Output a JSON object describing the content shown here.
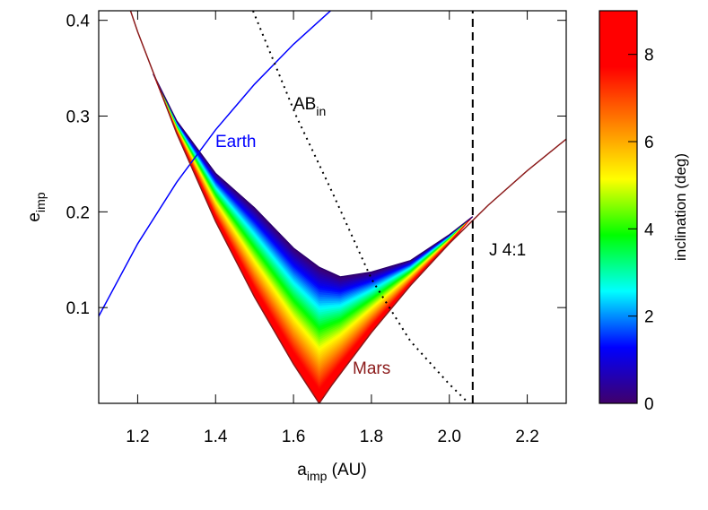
{
  "chart_data": {
    "type": "line",
    "xlabel": {
      "main": "a",
      "sub": "imp",
      "rest": " (AU)"
    },
    "ylabel": {
      "main": "e",
      "sub": "imp"
    },
    "xlim": [
      1.1,
      2.3
    ],
    "xticks": [
      1.2,
      1.4,
      1.6,
      1.8,
      {
        "value": 2.0,
        "label": "2.0"
      },
      2.2
    ],
    "ylim": [
      0,
      0.41
    ],
    "yticks": [
      0.1,
      0.2,
      0.3,
      0.4
    ],
    "series": [
      {
        "name": "Earth",
        "color": "#0000ff",
        "style": "solid",
        "x": [
          1.1,
          1.2,
          1.3,
          1.4,
          1.5,
          1.6,
          1.7
        ],
        "values": [
          0.0909,
          0.1667,
          0.2308,
          0.2857,
          0.3333,
          0.375,
          0.4118
        ]
      },
      {
        "name": "Mars",
        "color": "#8b1a1a",
        "style": "solid",
        "x": [
          1.18,
          1.2,
          1.3,
          1.4,
          1.5,
          1.6,
          1.666,
          1.7,
          1.8,
          1.9,
          2.0,
          2.1,
          2.2,
          2.3
        ],
        "values": [
          0.412,
          0.388,
          0.282,
          0.19,
          0.111,
          0.041,
          0,
          0.02,
          0.074,
          0.123,
          0.167,
          0.207,
          0.243,
          0.276
        ]
      },
      {
        "name": "AB",
        "color": "#000000",
        "style": "dotted",
        "x": [
          1.496,
          1.607,
          1.7,
          1.8,
          1.9,
          2.0,
          2.05
        ],
        "values": [
          0.41,
          0.3,
          0.22,
          0.13,
          0.065,
          0.02,
          0
        ]
      },
      {
        "name": "J 4:1",
        "color": "#000000",
        "style": "dashed",
        "x": [
          2.06,
          2.06
        ],
        "values": [
          0,
          0.41
        ]
      }
    ],
    "annotations": {
      "ab_sub": "in"
    },
    "region": {
      "x": [
        1.24,
        1.3,
        1.4,
        1.5,
        1.6,
        1.666,
        1.72,
        1.8,
        1.9,
        2.0,
        2.06
      ],
      "upper": [
        0.344,
        0.295,
        0.24,
        0.204,
        0.162,
        0.142,
        0.132,
        0.137,
        0.149,
        0.176,
        0.195
      ],
      "lower": [
        0.344,
        0.282,
        0.19,
        0.111,
        0.041,
        0,
        0.031,
        0.074,
        0.123,
        0.167,
        0.195
      ]
    },
    "colorbar": {
      "label": "inclination (deg)",
      "lim": [
        0,
        9
      ],
      "ticks": [
        0,
        2,
        4,
        6,
        8
      ],
      "colormap": [
        "#40006a",
        "#0000ff",
        "#00ffff",
        "#00ff00",
        "#ffff00",
        "#ff8000",
        "#ff0000",
        "#ff0000"
      ]
    }
  }
}
